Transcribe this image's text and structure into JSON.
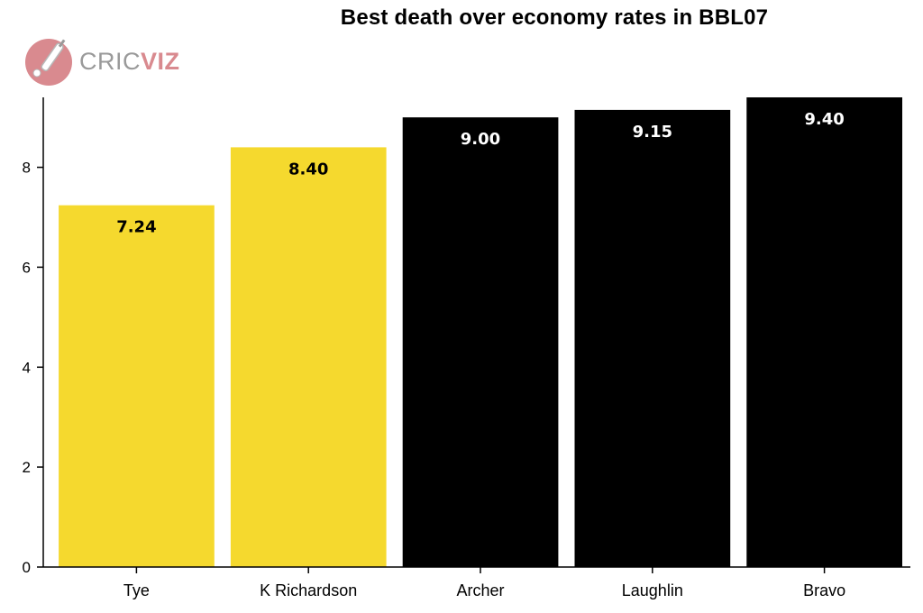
{
  "logo": {
    "text_part1": "CRIC",
    "text_part2": "VIZ"
  },
  "chart_data": {
    "type": "bar",
    "title": "Best death over economy rates in BBL07",
    "categories": [
      "Tye",
      "K Richardson",
      "Archer",
      "Laughlin",
      "Bravo"
    ],
    "values": [
      7.24,
      8.4,
      9.0,
      9.15,
      9.4
    ],
    "value_labels": [
      "7.24",
      "8.40",
      "9.00",
      "9.15",
      "9.40"
    ],
    "bar_colors": [
      "#f5d92e",
      "#f5d92e",
      "#000000",
      "#000000",
      "#000000"
    ],
    "label_colors": [
      "#000000",
      "#000000",
      "#ffffff",
      "#ffffff",
      "#ffffff"
    ],
    "ylim": [
      0,
      9.4
    ],
    "yticks": [
      0,
      2,
      4,
      6,
      8
    ],
    "xlabel": "",
    "ylabel": "",
    "grid": false,
    "legend": "none"
  }
}
